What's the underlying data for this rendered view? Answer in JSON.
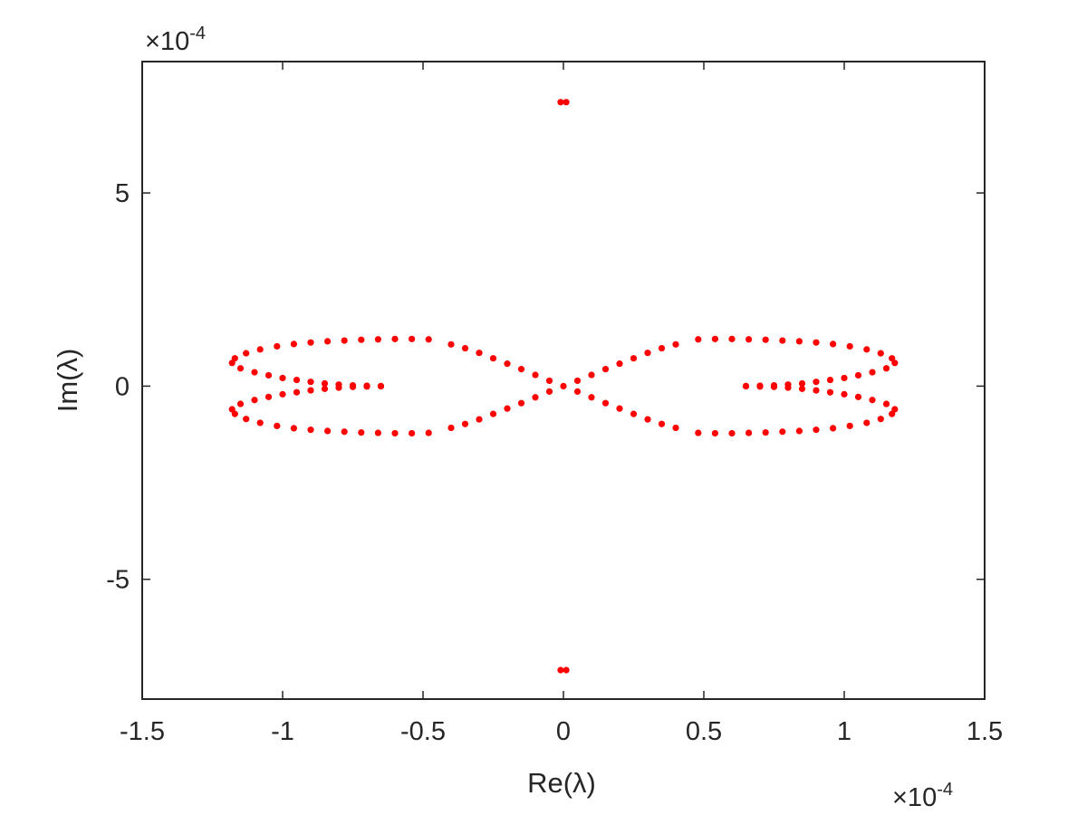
{
  "chart_data": {
    "type": "scatter",
    "title": "",
    "xlabel": "Re(λ)",
    "ylabel": "Im(λ)",
    "x_multiplier": "×10",
    "x_multiplier_exp": "-4",
    "y_multiplier": "×10",
    "y_multiplier_exp": "-4",
    "xlim": [
      -1.5,
      1.5
    ],
    "ylim": [
      -8.1,
      8.4
    ],
    "xticks": [
      -1.5,
      -1,
      -0.5,
      0,
      0.5,
      1,
      1.5
    ],
    "xtick_labels": [
      "-1.5",
      "-1",
      "-0.5",
      "0",
      "0.5",
      "1",
      "1.5"
    ],
    "yticks": [
      -5,
      0,
      5
    ],
    "ytick_labels": [
      "-5",
      "0",
      "5"
    ],
    "grid": false,
    "marker_color": "#ff0000",
    "axis_color": "#262626",
    "series": [
      {
        "points": [
          [
            -0.01,
            7.35
          ],
          [
            0.01,
            7.35
          ],
          [
            -0.01,
            -7.35
          ],
          [
            0.01,
            -7.35
          ],
          [
            -0.65,
            0.0
          ],
          [
            -0.7,
            0.01
          ],
          [
            -0.75,
            0.02
          ],
          [
            -0.8,
            0.04
          ],
          [
            -0.85,
            0.07
          ],
          [
            -0.9,
            0.11
          ],
          [
            -0.95,
            0.16
          ],
          [
            -1.0,
            0.21
          ],
          [
            -1.05,
            0.28
          ],
          [
            -1.1,
            0.36
          ],
          [
            -1.15,
            0.46
          ],
          [
            -1.18,
            0.6
          ],
          [
            -1.17,
            0.72
          ],
          [
            -1.13,
            0.85
          ],
          [
            -1.08,
            0.95
          ],
          [
            -1.02,
            1.03
          ],
          [
            -0.96,
            1.09
          ],
          [
            -0.9,
            1.13
          ],
          [
            -0.84,
            1.16
          ],
          [
            -0.78,
            1.18
          ],
          [
            -0.72,
            1.2
          ],
          [
            -0.66,
            1.21
          ],
          [
            -0.6,
            1.22
          ],
          [
            -0.54,
            1.22
          ],
          [
            -0.48,
            1.21
          ],
          [
            -0.65,
            0.0
          ],
          [
            -0.7,
            -0.01
          ],
          [
            -0.75,
            -0.02
          ],
          [
            -0.8,
            -0.04
          ],
          [
            -0.85,
            -0.07
          ],
          [
            -0.9,
            -0.11
          ],
          [
            -0.95,
            -0.16
          ],
          [
            -1.0,
            -0.21
          ],
          [
            -1.05,
            -0.28
          ],
          [
            -1.1,
            -0.36
          ],
          [
            -1.15,
            -0.46
          ],
          [
            -1.18,
            -0.6
          ],
          [
            -1.17,
            -0.72
          ],
          [
            -1.13,
            -0.85
          ],
          [
            -1.08,
            -0.95
          ],
          [
            -1.02,
            -1.03
          ],
          [
            -0.96,
            -1.09
          ],
          [
            -0.9,
            -1.13
          ],
          [
            -0.84,
            -1.16
          ],
          [
            -0.78,
            -1.18
          ],
          [
            -0.72,
            -1.2
          ],
          [
            -0.66,
            -1.21
          ],
          [
            -0.6,
            -1.22
          ],
          [
            -0.54,
            -1.22
          ],
          [
            -0.48,
            -1.21
          ],
          [
            0.65,
            0.0
          ],
          [
            0.7,
            0.01
          ],
          [
            0.75,
            0.02
          ],
          [
            0.8,
            0.04
          ],
          [
            0.85,
            0.07
          ],
          [
            0.9,
            0.11
          ],
          [
            0.95,
            0.16
          ],
          [
            1.0,
            0.21
          ],
          [
            1.05,
            0.28
          ],
          [
            1.1,
            0.36
          ],
          [
            1.15,
            0.46
          ],
          [
            1.18,
            0.6
          ],
          [
            1.17,
            0.72
          ],
          [
            1.13,
            0.85
          ],
          [
            1.08,
            0.95
          ],
          [
            1.02,
            1.03
          ],
          [
            0.96,
            1.09
          ],
          [
            0.9,
            1.13
          ],
          [
            0.84,
            1.16
          ],
          [
            0.78,
            1.18
          ],
          [
            0.72,
            1.2
          ],
          [
            0.66,
            1.21
          ],
          [
            0.6,
            1.22
          ],
          [
            0.54,
            1.22
          ],
          [
            0.48,
            1.21
          ],
          [
            0.65,
            0.0
          ],
          [
            0.7,
            -0.01
          ],
          [
            0.75,
            -0.02
          ],
          [
            0.8,
            -0.04
          ],
          [
            0.85,
            -0.07
          ],
          [
            0.9,
            -0.11
          ],
          [
            0.95,
            -0.16
          ],
          [
            1.0,
            -0.21
          ],
          [
            1.05,
            -0.28
          ],
          [
            1.1,
            -0.36
          ],
          [
            1.15,
            -0.46
          ],
          [
            1.18,
            -0.6
          ],
          [
            1.17,
            -0.72
          ],
          [
            1.13,
            -0.85
          ],
          [
            1.08,
            -0.95
          ],
          [
            1.02,
            -1.03
          ],
          [
            0.96,
            -1.09
          ],
          [
            0.9,
            -1.13
          ],
          [
            0.84,
            -1.16
          ],
          [
            0.78,
            -1.18
          ],
          [
            0.72,
            -1.2
          ],
          [
            0.66,
            -1.21
          ],
          [
            0.6,
            -1.22
          ],
          [
            0.54,
            -1.22
          ],
          [
            0.48,
            -1.21
          ],
          [
            -0.4,
            1.08
          ],
          [
            -0.35,
            0.98
          ],
          [
            -0.3,
            0.86
          ],
          [
            -0.25,
            0.72
          ],
          [
            -0.2,
            0.58
          ],
          [
            -0.15,
            0.44
          ],
          [
            -0.1,
            0.29
          ],
          [
            -0.05,
            0.14
          ],
          [
            0.0,
            0.0
          ],
          [
            0.05,
            -0.14
          ],
          [
            0.1,
            -0.29
          ],
          [
            0.15,
            -0.44
          ],
          [
            0.2,
            -0.58
          ],
          [
            0.25,
            -0.72
          ],
          [
            0.3,
            -0.86
          ],
          [
            0.35,
            -0.98
          ],
          [
            0.4,
            -1.08
          ],
          [
            -0.4,
            -1.08
          ],
          [
            -0.35,
            -0.98
          ],
          [
            -0.3,
            -0.86
          ],
          [
            -0.25,
            -0.72
          ],
          [
            -0.2,
            -0.58
          ],
          [
            -0.15,
            -0.44
          ],
          [
            -0.1,
            -0.29
          ],
          [
            -0.05,
            -0.14
          ],
          [
            0.05,
            0.14
          ],
          [
            0.1,
            0.29
          ],
          [
            0.15,
            0.44
          ],
          [
            0.2,
            0.58
          ],
          [
            0.25,
            0.72
          ],
          [
            0.3,
            0.86
          ],
          [
            0.35,
            0.98
          ],
          [
            0.4,
            1.08
          ]
        ]
      }
    ]
  }
}
